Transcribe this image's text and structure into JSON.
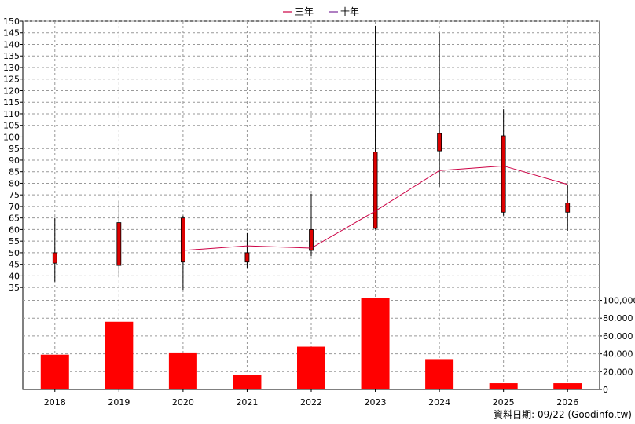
{
  "chart_data": {
    "type": "candlestick",
    "categories": [
      "2018",
      "2019",
      "2020",
      "2021",
      "2022",
      "2023",
      "2024",
      "2025",
      "2026"
    ],
    "legend": [
      {
        "name": "三年",
        "color": "#cc0044"
      },
      {
        "name": "十年",
        "color": "#7a2a9a"
      }
    ],
    "price": {
      "ylim": [
        32,
        150
      ],
      "ticks": [
        35,
        40,
        45,
        50,
        55,
        60,
        65,
        70,
        75,
        80,
        85,
        90,
        95,
        100,
        105,
        110,
        115,
        120,
        125,
        130,
        135,
        140,
        145,
        150
      ],
      "candles": [
        {
          "open": 45.5,
          "close": 50.0,
          "high": 65.0,
          "low": 37.5
        },
        {
          "open": 44.5,
          "close": 63.0,
          "high": 72.5,
          "low": 39.5
        },
        {
          "open": 46.0,
          "close": 65.0,
          "high": 66.0,
          "low": 34.0
        },
        {
          "open": 46.0,
          "close": 50.0,
          "high": 58.5,
          "low": 43.5
        },
        {
          "open": 51.0,
          "close": 60.0,
          "high": 75.5,
          "low": 48.5
        },
        {
          "open": 60.5,
          "close": 93.5,
          "high": 148.0,
          "low": 60.0
        },
        {
          "open": 94.0,
          "close": 101.5,
          "high": 145.0,
          "low": 78.5
        },
        {
          "open": 67.5,
          "close": 100.5,
          "high": 112.0,
          "low": 66.0
        },
        {
          "open": 67.5,
          "close": 71.5,
          "high": 79.5,
          "low": 59.5
        }
      ],
      "up_color": "#33cc33",
      "down_color": "#dd0000",
      "three_year_line": [
        null,
        null,
        51.0,
        53.0,
        52.0,
        68.0,
        85.5,
        87.5,
        79.5
      ]
    },
    "volume": {
      "ylim": [
        0,
        104000
      ],
      "ticks": [
        0,
        20000,
        40000,
        60000,
        80000,
        100000
      ],
      "tick_labels": [
        "0",
        "20,000",
        "40,000",
        "60,000",
        "80,000",
        "100,000"
      ],
      "values": [
        39000,
        76000,
        41500,
        16000,
        48000,
        103000,
        34000,
        7000,
        7000
      ],
      "color": "#ff0000"
    },
    "grid": true
  },
  "footer": "資料日期: 09/22  (Goodinfo.tw)"
}
